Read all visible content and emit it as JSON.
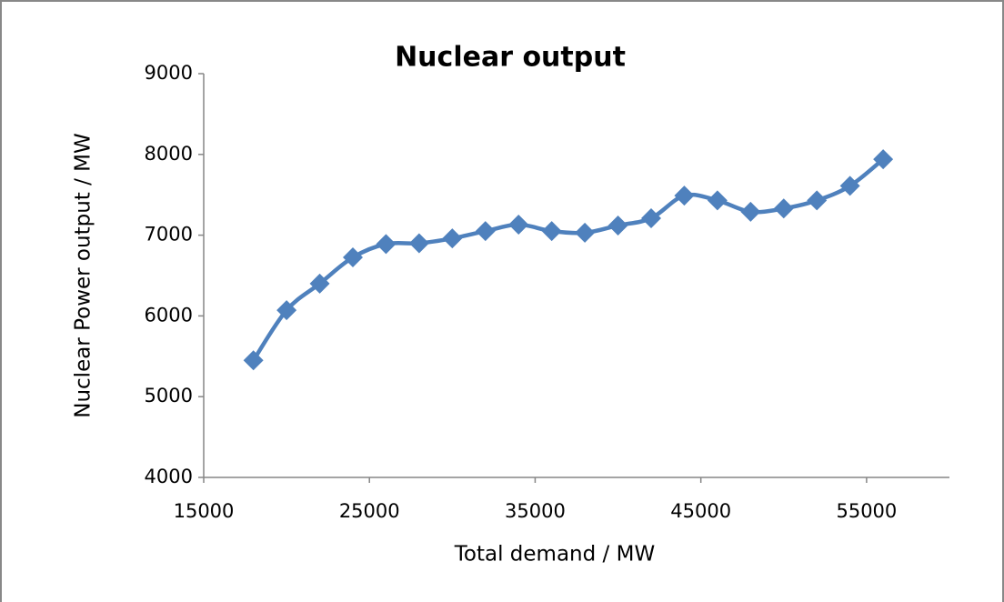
{
  "chart_data": {
    "type": "line",
    "title": "Nuclear output",
    "x_label": "Total demand / MW",
    "y_label": "Nuclear Power output / MW",
    "x": [
      18000,
      20000,
      22000,
      24000,
      26000,
      28000,
      30000,
      32000,
      34000,
      36000,
      38000,
      40000,
      42000,
      44000,
      46000,
      48000,
      50000,
      52000,
      54000,
      56000
    ],
    "series": [
      {
        "name": "Nuclear output",
        "color": "#4f81bd",
        "values": [
          5450,
          6070,
          6400,
          6725,
          6890,
          6900,
          6960,
          7050,
          7130,
          7050,
          7030,
          7120,
          7210,
          7490,
          7430,
          7290,
          7330,
          7430,
          7610,
          7940
        ]
      }
    ],
    "xlim": [
      15000,
      60000
    ],
    "xticks": [
      15000,
      25000,
      35000,
      45000,
      55000
    ],
    "ylim": [
      4000,
      9000
    ],
    "yticks": [
      4000,
      5000,
      6000,
      7000,
      8000,
      9000
    ]
  }
}
